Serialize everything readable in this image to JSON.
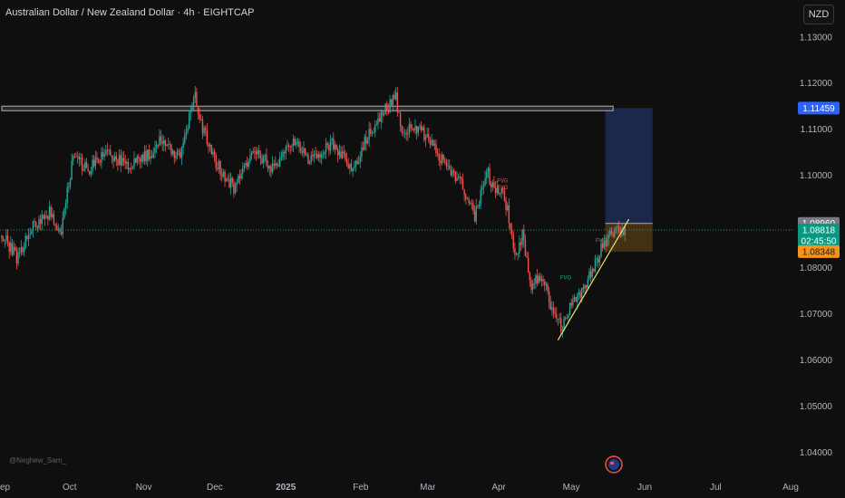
{
  "header": {
    "title": "Australian Dollar / New Zealand Dollar · 4h · EIGHTCAP",
    "currency_button": "NZD"
  },
  "watermark": "@Neghew_Sam_",
  "colors": {
    "background": "#0f0f0f",
    "up": "#26a69a",
    "down": "#ef5350",
    "target_zone": "#1e2a4f",
    "stop_zone": "#4a3512",
    "resistance": "#9598a1",
    "trendline": "#e9e46a"
  },
  "chart_data": {
    "type": "candlestick",
    "symbol": "AUDNZD",
    "timeframe": "4h",
    "exchange": "EIGHTCAP",
    "ylim": [
      1.035,
      1.138
    ],
    "y_ticks": [
      "1.13000",
      "1.12000",
      "1.11000",
      "1.10000",
      "1.09000",
      "1.08000",
      "1.07000",
      "1.06000",
      "1.05000",
      "1.04000"
    ],
    "x_ticks": [
      {
        "label": "ep",
        "pos": 0.0
      },
      {
        "label": "Oct",
        "pos": 0.086
      },
      {
        "label": "Nov",
        "pos": 0.18
      },
      {
        "label": "Dec",
        "pos": 0.27
      },
      {
        "label": "2025",
        "pos": 0.36,
        "bold": true
      },
      {
        "label": "Feb",
        "pos": 0.455
      },
      {
        "label": "Mar",
        "pos": 0.54
      },
      {
        "label": "Apr",
        "pos": 0.63
      },
      {
        "label": "May",
        "pos": 0.722
      },
      {
        "label": "Jun",
        "pos": 0.815
      },
      {
        "label": "Jul",
        "pos": 0.905
      },
      {
        "label": "Aug",
        "pos": 1.0
      }
    ],
    "price_path": [
      [
        0.0,
        1.087
      ],
      [
        0.02,
        1.082
      ],
      [
        0.035,
        1.088
      ],
      [
        0.06,
        1.092
      ],
      [
        0.075,
        1.087
      ],
      [
        0.09,
        1.104
      ],
      [
        0.11,
        1.101
      ],
      [
        0.13,
        1.105
      ],
      [
        0.16,
        1.102
      ],
      [
        0.19,
        1.105
      ],
      [
        0.2,
        1.108
      ],
      [
        0.225,
        1.104
      ],
      [
        0.245,
        1.117
      ],
      [
        0.255,
        1.11
      ],
      [
        0.27,
        1.103
      ],
      [
        0.295,
        1.097
      ],
      [
        0.32,
        1.106
      ],
      [
        0.345,
        1.101
      ],
      [
        0.37,
        1.108
      ],
      [
        0.39,
        1.103
      ],
      [
        0.42,
        1.107
      ],
      [
        0.445,
        1.101
      ],
      [
        0.46,
        1.107
      ],
      [
        0.48,
        1.113
      ],
      [
        0.5,
        1.117
      ],
      [
        0.505,
        1.11
      ],
      [
        0.53,
        1.11
      ],
      [
        0.56,
        1.103
      ],
      [
        0.58,
        1.099
      ],
      [
        0.6,
        1.091
      ],
      [
        0.615,
        1.101
      ],
      [
        0.625,
        1.096
      ],
      [
        0.635,
        1.097
      ],
      [
        0.645,
        1.089
      ],
      [
        0.65,
        1.082
      ],
      [
        0.66,
        1.087
      ],
      [
        0.67,
        1.076
      ],
      [
        0.685,
        1.078
      ],
      [
        0.7,
        1.07
      ],
      [
        0.71,
        1.067
      ],
      [
        0.72,
        1.071
      ],
      [
        0.735,
        1.075
      ],
      [
        0.745,
        1.078
      ],
      [
        0.76,
        1.084
      ],
      [
        0.775,
        1.088
      ],
      [
        0.79,
        1.0882
      ]
    ],
    "resistance_level": 1.1145,
    "resistance_range": [
      0.0,
      0.775
    ],
    "trendline": {
      "from": [
        0.705,
        1.0643
      ],
      "to": [
        0.795,
        1.0905
      ]
    },
    "current_price_line": 1.08818,
    "position": {
      "x_range": [
        0.765,
        0.825
      ],
      "target": 1.11459,
      "entry": 1.0896,
      "stop": 1.08348
    },
    "labels": [
      {
        "text": "FVG",
        "x": 0.635,
        "y": 1.0985,
        "color": "#ef5350"
      },
      {
        "text": "FVG",
        "x": 0.635,
        "y": 1.097,
        "color": "#ef5350"
      },
      {
        "text": "FVG",
        "x": 0.715,
        "y": 1.0775,
        "color": "#26a69a"
      },
      {
        "text": "FVG",
        "x": 0.76,
        "y": 1.0855,
        "color": "#26a69a"
      }
    ],
    "price_badges": [
      {
        "text": "1.11459",
        "value": 1.11459,
        "bg": "#2962ff",
        "fg": "#ffffff"
      },
      {
        "text": "1.08960",
        "value": 1.0896,
        "bg": "#787b86",
        "fg": "#ffffff"
      },
      {
        "text": "1.08818",
        "value": 1.08818,
        "bg": "#089981",
        "fg": "#ffffff",
        "sub": "02:45:50"
      },
      {
        "text": "1.08348",
        "value": 1.08348,
        "bg": "#f7931a",
        "fg": "#131722"
      }
    ]
  }
}
